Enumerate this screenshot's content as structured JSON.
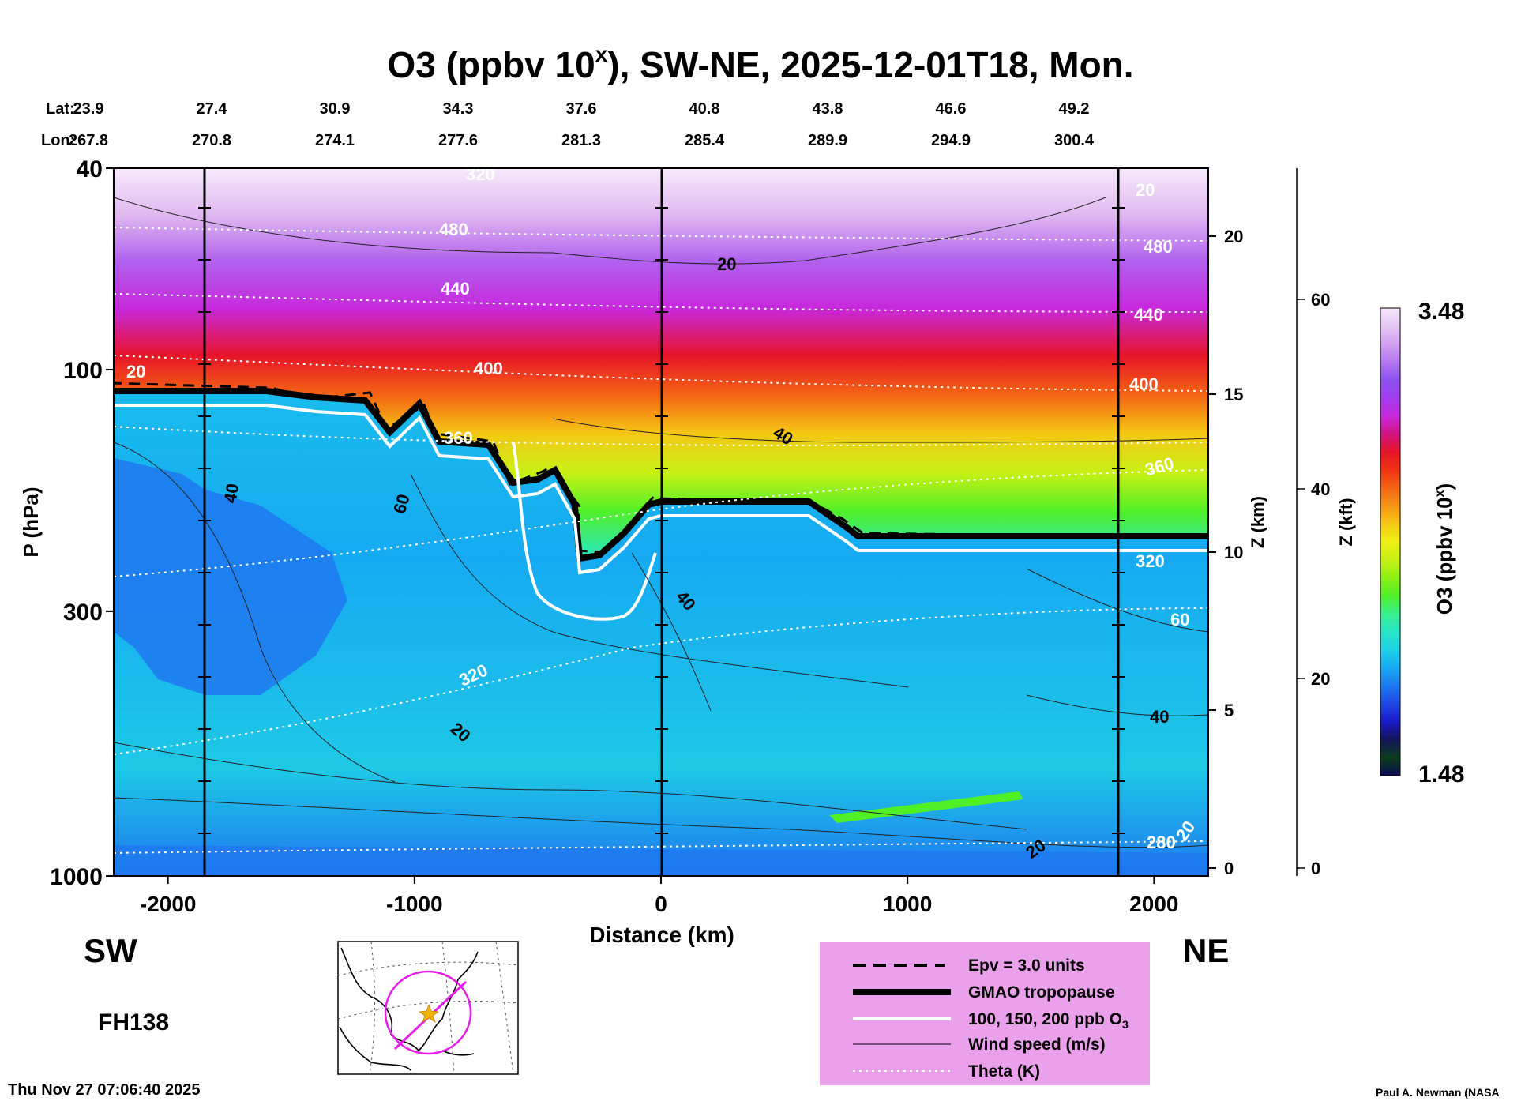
{
  "chart_data": {
    "type": "heatmap",
    "title": "O3 (ppbv 10",
    "title_sup": "x",
    "title_rest": "), SW-NE, 2025-12-01T18, Mon.",
    "xlabel": "Distance (km)",
    "ylabel": "P (hPa)",
    "x_ticks": [
      "-2000",
      "-1000",
      "0",
      "1000",
      "2000"
    ],
    "x_tick_values": [
      -2000,
      -1000,
      0,
      1000,
      2000
    ],
    "xlim": [
      -2220,
      2220
    ],
    "y_ticks": [
      "40",
      "100",
      "300",
      "1000"
    ],
    "y_tick_values": [
      40,
      100,
      300,
      1000
    ],
    "ylim": [
      40,
      1000
    ],
    "lat_label": "Lat:",
    "lon_label": "Lon:",
    "lat_values": [
      "23.9",
      "27.4",
      "30.9",
      "34.3",
      "37.6",
      "40.8",
      "43.8",
      "46.6",
      "49.2"
    ],
    "lon_values": [
      "267.8",
      "270.8",
      "274.1",
      "277.6",
      "281.3",
      "285.4",
      "289.9",
      "294.9",
      "300.4"
    ],
    "z_km_label": "Z (km)",
    "z_km_ticks": [
      "20",
      "15",
      "10",
      "5",
      "0"
    ],
    "z_km_values": [
      20,
      15,
      10,
      5,
      0
    ],
    "z_kft_label": "Z (kft)",
    "z_kft_ticks": [
      "60",
      "40",
      "20",
      "0"
    ],
    "z_kft_values": [
      60,
      40,
      20,
      0
    ],
    "colorbar": {
      "label": "O3 (ppbv 10",
      "label_sup": "x",
      "label_end": ")",
      "max": "3.48",
      "min": "1.48",
      "colors": [
        "#0a0a55",
        "#0b3d1a",
        "#14145a",
        "#1a1ac8",
        "#1e46e6",
        "#1e78f0",
        "#16aaf2",
        "#1ed2e6",
        "#28e6c8",
        "#37f08c",
        "#50f028",
        "#8cf014",
        "#c8f014",
        "#f0f014",
        "#f5c814",
        "#f59614",
        "#f56414",
        "#f03214",
        "#e61428",
        "#d21482",
        "#c828dc",
        "#a03cf0",
        "#8c50f0",
        "#b478f0",
        "#d2a0f0",
        "#e6c8f5",
        "#f5e6fa"
      ]
    },
    "contour_labels": {
      "wind_speed": [
        "20",
        "40",
        "60",
        "40",
        "20",
        "40",
        "60",
        "40",
        "20",
        "20",
        "20",
        "20"
      ],
      "theta": [
        "480",
        "440",
        "400",
        "360",
        "320",
        "480",
        "440",
        "400",
        "360",
        "320",
        "280",
        "320"
      ]
    },
    "direction_left": "SW",
    "direction_right": "NE",
    "forecast_hour": "FH138",
    "timestamp": "Thu Nov 27 07:06:40 2025",
    "credit": "Paul A. Newman (NASA",
    "legend": [
      {
        "label": "Epv = 3.0 units",
        "style": "dashed-black"
      },
      {
        "label": "GMAO tropopause",
        "style": "thick-black"
      },
      {
        "label": "100, 150, 200 ppb O",
        "sub": "3",
        "style": "white"
      },
      {
        "label": "Wind speed (m/s)",
        "style": "thin-black"
      },
      {
        "label": "Theta (K)",
        "style": "dotted-white"
      }
    ],
    "tropopause_km": [
      [
        -2220,
        15.1
      ],
      [
        -1600,
        15.1
      ],
      [
        -1400,
        14.9
      ],
      [
        -1200,
        14.8
      ],
      [
        -1100,
        13.8
      ],
      [
        -980,
        14.7
      ],
      [
        -900,
        13.5
      ],
      [
        -700,
        13.4
      ],
      [
        -600,
        12.2
      ],
      [
        -500,
        12.3
      ],
      [
        -430,
        12.6
      ],
      [
        -350,
        11.5
      ],
      [
        -330,
        9.8
      ],
      [
        -250,
        9.9
      ],
      [
        -150,
        10.6
      ],
      [
        -50,
        11.5
      ],
      [
        0,
        11.6
      ],
      [
        600,
        11.6
      ],
      [
        750,
        10.8
      ],
      [
        800,
        10.5
      ],
      [
        2220,
        10.5
      ]
    ],
    "map_inset": {
      "marker": "star",
      "path": "SW-NE cross section"
    }
  },
  "colors": {
    "background": "#ffffff",
    "tropopause": "#000000",
    "ozone_contour": "#ffffff",
    "legend_bg": "#eba0eb",
    "map_circle": "#e61ee6",
    "map_star": "#f0b400"
  }
}
